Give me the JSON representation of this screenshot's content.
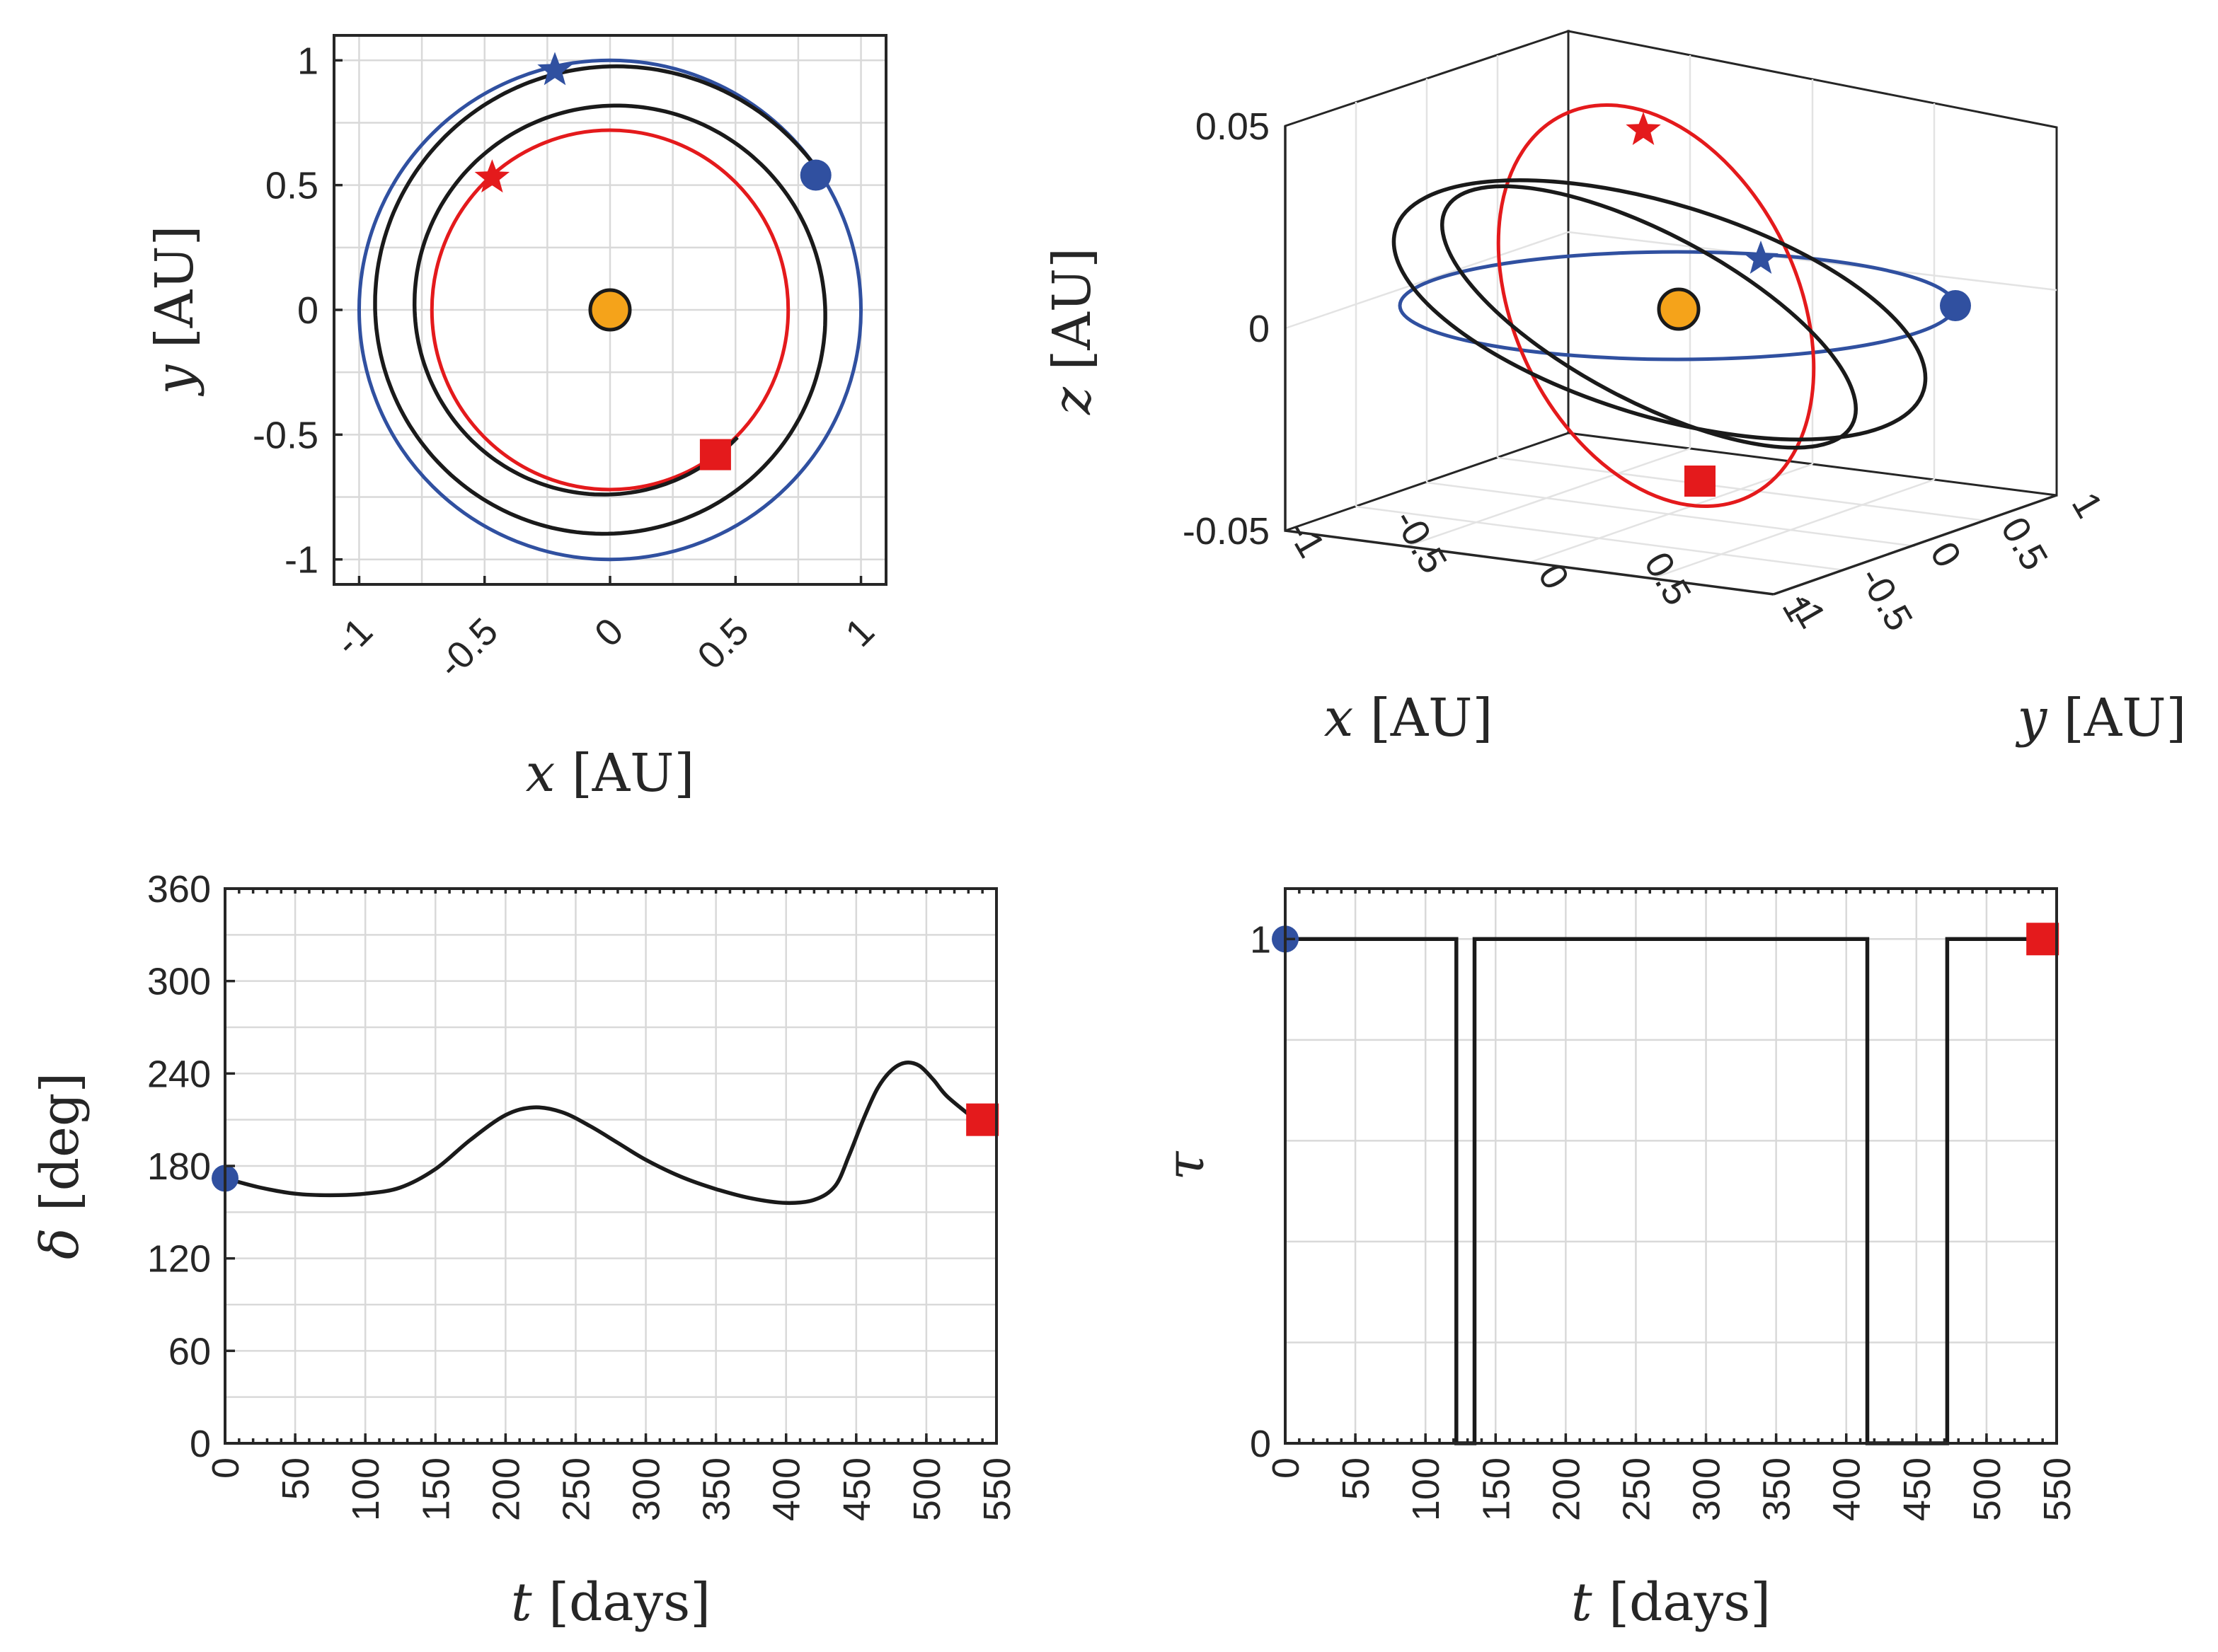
{
  "colors": {
    "blue": "#3050a0",
    "red": "#e41a1c",
    "black": "#1a1a1a",
    "sun": "#f5a31a",
    "axis": "#262626",
    "grid": "#d9d9d9"
  },
  "chart_data": [
    {
      "type": "line",
      "panel": "top-left",
      "xlabel": "x [AU]",
      "ylabel": "y [AU]",
      "xlim": [
        -1.1,
        1.1
      ],
      "ylim": [
        -1.1,
        1.1
      ],
      "xticks": [
        -1,
        -0.5,
        0,
        0.5,
        1
      ],
      "yticks": [
        -1,
        -0.5,
        0,
        0.5,
        1
      ],
      "xtick_labels": [
        "-1",
        "-0.5",
        "0",
        "0.5",
        "1"
      ],
      "ytick_labels": [
        "-1",
        "-0.5",
        "0",
        "0.5",
        "1"
      ],
      "grid": true,
      "sun": [
        0,
        0
      ],
      "orbits": [
        {
          "color": "blue",
          "a": 1.0,
          "e": 0.0,
          "cx": 0.0,
          "cy": 0.0
        },
        {
          "color": "red",
          "rx": 0.71,
          "ry": 0.72,
          "cx": 0.0,
          "cy": 0.06
        }
      ],
      "transfer_spiral": {
        "color": "black",
        "r_start": 1.0,
        "r_end": 0.72,
        "start_angle_deg": 34,
        "revolutions": 1.78
      },
      "markers": [
        {
          "shape": "circle",
          "color": "blue",
          "x": 0.82,
          "y": 0.54
        },
        {
          "shape": "star",
          "color": "blue",
          "x": -0.22,
          "y": 0.96
        },
        {
          "shape": "star",
          "color": "red",
          "x": -0.47,
          "y": 0.53
        },
        {
          "shape": "square",
          "color": "red",
          "x": 0.42,
          "y": -0.58
        }
      ]
    },
    {
      "type": "line",
      "panel": "top-right",
      "projection": "3d",
      "xlabel": "x [AU]",
      "ylabel": "y [AU]",
      "zlabel": "z [AU]",
      "xlim": [
        -1,
        1
      ],
      "ylim": [
        -1,
        1
      ],
      "zlim": [
        -0.05,
        0.05
      ],
      "xtick_labels": [
        "-1",
        "-0.5",
        "0",
        "0.5",
        "1"
      ],
      "ytick_labels": [
        "-1",
        "-0.5",
        "0",
        "0.5",
        "1"
      ],
      "ztick_labels": [
        "-0.05",
        "0",
        "0.05"
      ],
      "grid": true
    },
    {
      "type": "line",
      "panel": "bottom-left",
      "xlabel": "t [days]",
      "ylabel": "δ [deg]",
      "xlim": [
        0,
        550
      ],
      "ylim": [
        0,
        360
      ],
      "xticks": [
        0,
        50,
        100,
        150,
        200,
        250,
        300,
        350,
        400,
        450,
        500,
        550
      ],
      "yticks": [
        0,
        60,
        120,
        180,
        240,
        300,
        360
      ],
      "xtick_labels": [
        "0",
        "50",
        "100",
        "150",
        "200",
        "250",
        "300",
        "350",
        "400",
        "450",
        "500",
        "550"
      ],
      "ytick_labels": [
        "0",
        "60",
        "120",
        "180",
        "240",
        "300",
        "360"
      ],
      "grid": true,
      "series": [
        {
          "color": "black",
          "x": [
            0,
            25,
            50,
            75,
            100,
            125,
            150,
            175,
            200,
            220,
            240,
            260,
            280,
            300,
            325,
            350,
            375,
            400,
            420,
            435,
            445,
            455,
            465,
            475,
            485,
            495,
            505,
            515,
            535
          ],
          "y": [
            172,
            166,
            162,
            161,
            162,
            166,
            178,
            197,
            213,
            218,
            215,
            206,
            195,
            184,
            173,
            165,
            159,
            156,
            158,
            167,
            187,
            210,
            230,
            242,
            247,
            245,
            236,
            225,
            210
          ]
        }
      ],
      "markers": [
        {
          "shape": "circle",
          "color": "blue",
          "x": 0,
          "y": 172
        },
        {
          "shape": "square",
          "color": "red",
          "x": 540,
          "y": 210
        }
      ]
    },
    {
      "type": "line",
      "panel": "bottom-right",
      "xlabel": "t [days]",
      "ylabel": "τ",
      "xlim": [
        0,
        550
      ],
      "ylim": [
        0,
        1.1
      ],
      "xticks": [
        0,
        50,
        100,
        150,
        200,
        250,
        300,
        350,
        400,
        450,
        500,
        550
      ],
      "yticks": [
        0,
        1
      ],
      "xtick_labels": [
        "0",
        "50",
        "100",
        "150",
        "200",
        "250",
        "300",
        "350",
        "400",
        "450",
        "500",
        "550"
      ],
      "ytick_labels": [
        "0",
        "1"
      ],
      "grid": true,
      "series": [
        {
          "color": "black",
          "x": [
            0,
            122,
            122,
            135,
            135,
            415,
            415,
            472,
            472,
            540
          ],
          "y": [
            1,
            1,
            0,
            0,
            1,
            1,
            0,
            0,
            1,
            1
          ]
        }
      ],
      "markers": [
        {
          "shape": "circle",
          "color": "blue",
          "x": 0,
          "y": 1
        },
        {
          "shape": "square",
          "color": "red",
          "x": 540,
          "y": 1
        }
      ]
    }
  ]
}
